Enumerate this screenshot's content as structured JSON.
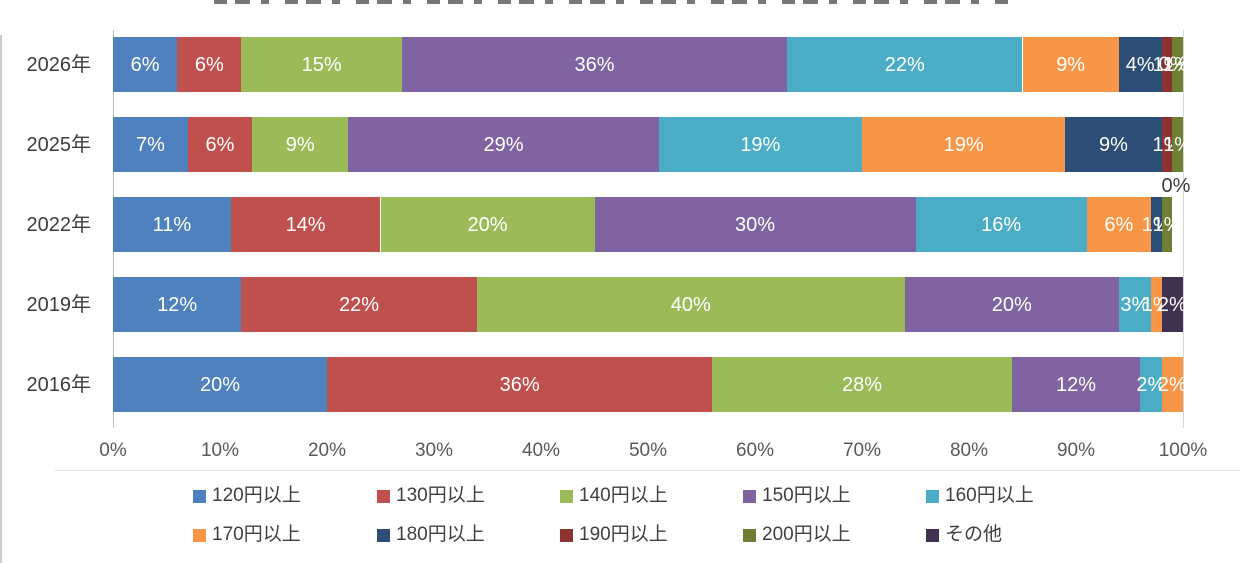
{
  "chart_data": {
    "type": "bar",
    "orientation": "horizontal",
    "stacked": true,
    "value_unit": "%",
    "categories": [
      "2026年",
      "2025年",
      "2022年",
      "2019年",
      "2016年"
    ],
    "series": [
      {
        "name": "120円以上",
        "color": "#4E81BD",
        "values": [
          6,
          7,
          11,
          12,
          20
        ]
      },
      {
        "name": "130円以上",
        "color": "#C0504D",
        "values": [
          6,
          6,
          14,
          22,
          36
        ]
      },
      {
        "name": "140円以上",
        "color": "#9BBB59",
        "values": [
          15,
          9,
          20,
          40,
          28
        ]
      },
      {
        "name": "150円以上",
        "color": "#8064A2",
        "values": [
          36,
          29,
          30,
          20,
          12
        ]
      },
      {
        "name": "160円以上",
        "color": "#4BACC6",
        "values": [
          22,
          19,
          16,
          3,
          2
        ]
      },
      {
        "name": "170円以上",
        "color": "#F79646",
        "values": [
          9,
          19,
          6,
          1,
          2
        ]
      },
      {
        "name": "180円以上",
        "color": "#2C4D75",
        "values": [
          4,
          9,
          1,
          0,
          0
        ]
      },
      {
        "name": "190円以上",
        "color": "#8C3230",
        "values": [
          1,
          1,
          0,
          0,
          0
        ]
      },
      {
        "name": "200円以上",
        "color": "#6E7F34",
        "values": [
          1,
          1,
          1,
          0,
          0
        ]
      },
      {
        "name": "その他",
        "color": "#403151",
        "values": [
          0,
          0,
          0,
          2,
          0
        ]
      }
    ],
    "x_axis": {
      "ticks": [
        "0%",
        "10%",
        "20%",
        "30%",
        "40%",
        "50%",
        "60%",
        "70%",
        "80%",
        "90%",
        "100%"
      ],
      "range": [
        0,
        100
      ]
    },
    "data_labels": "inside-center, value%",
    "zero_labels": [
      {
        "category_index": 0,
        "series_index": 9,
        "text": "0%",
        "placement": "inline"
      },
      {
        "category_index": 1,
        "series_index": 9,
        "text": "0%",
        "placement": "below"
      }
    ],
    "legend_position": "bottom",
    "grid": false
  }
}
